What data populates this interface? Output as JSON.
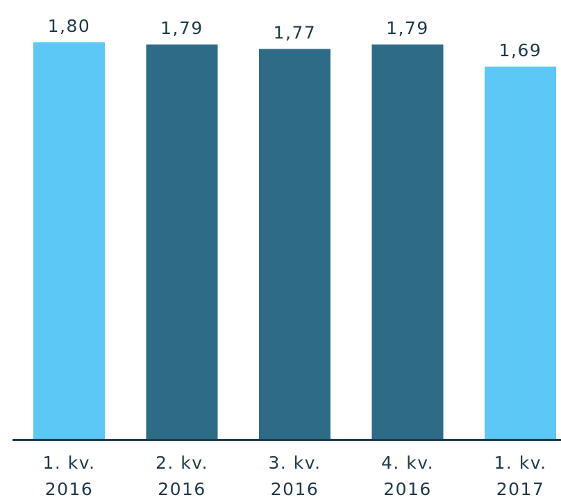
{
  "chart_data": {
    "type": "bar",
    "categories": [
      [
        "1. kv.",
        "2016"
      ],
      [
        "2. kv.",
        "2016"
      ],
      [
        "3. kv.",
        "2016"
      ],
      [
        "4. kv.",
        "2016"
      ],
      [
        "1. kv.",
        "2017"
      ]
    ],
    "values": [
      1.8,
      1.79,
      1.77,
      1.79,
      1.69
    ],
    "value_labels": [
      "1,80",
      "1,79",
      "1,77",
      "1,79",
      "1,69"
    ],
    "bar_colors": [
      "#5bc8f5",
      "#2e6b87",
      "#2e6b87",
      "#2e6b87",
      "#5bc8f5"
    ],
    "axis_color": "#1f3a4a",
    "ylim": [
      0,
      1.8
    ],
    "grid": false,
    "legend": "none",
    "title": "",
    "xlabel": "",
    "ylabel": ""
  }
}
